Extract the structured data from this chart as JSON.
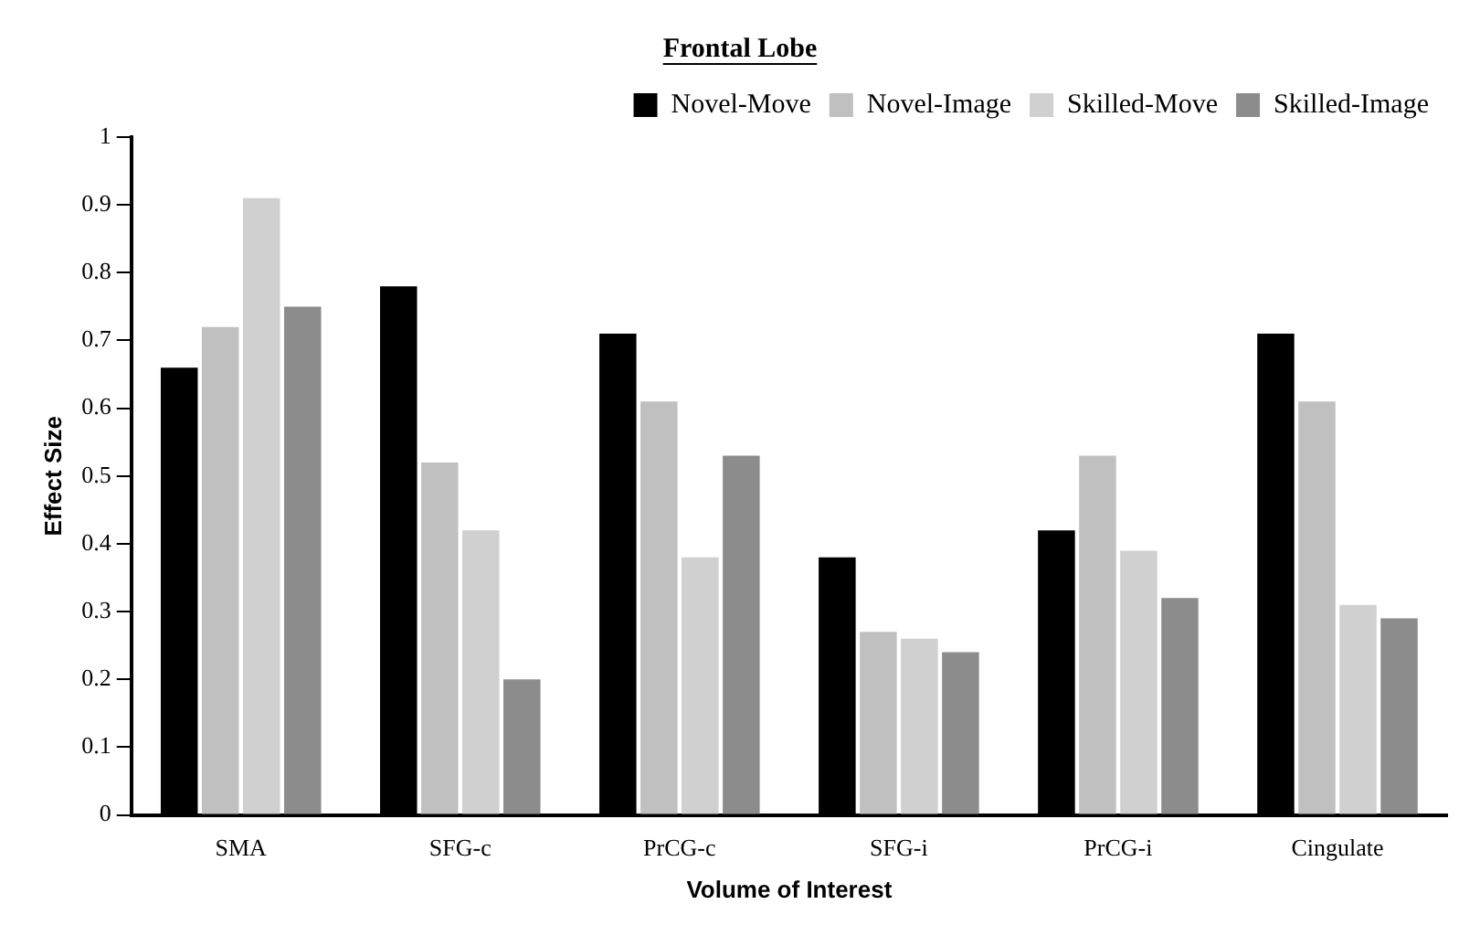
{
  "chart_data": {
    "type": "bar",
    "title": "Frontal Lobe",
    "xlabel": "Volume of Interest",
    "ylabel": "Effect Size",
    "categories": [
      "SMA",
      "SFG-c",
      "PrCG-c",
      "SFG-i",
      "PrCG-i",
      "Cingulate"
    ],
    "series": [
      {
        "name": "Novel-Move",
        "color": "#000000",
        "values": [
          0.66,
          0.78,
          0.71,
          0.38,
          0.42,
          0.71
        ]
      },
      {
        "name": "Novel-Image",
        "color": "#c0c0c0",
        "values": [
          0.72,
          0.52,
          0.61,
          0.27,
          0.53,
          0.61
        ]
      },
      {
        "name": "Skilled-Move",
        "color": "#d0d0d0",
        "values": [
          0.91,
          0.42,
          0.38,
          0.26,
          0.39,
          0.31
        ]
      },
      {
        "name": "Skilled-Image",
        "color": "#8c8c8c",
        "values": [
          0.75,
          0.2,
          0.53,
          0.24,
          0.32,
          0.29
        ]
      }
    ],
    "ylim": [
      0,
      1
    ],
    "yticks": [
      0,
      0.1,
      0.2,
      0.3,
      0.4,
      0.5,
      0.6,
      0.7,
      0.8,
      0.9,
      1
    ],
    "grid": false,
    "legend": "top right"
  }
}
